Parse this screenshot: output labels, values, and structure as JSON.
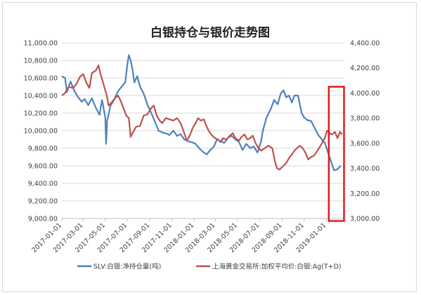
{
  "chart_data": {
    "type": "line",
    "title": "白银持仓与银价走势图",
    "x_ticks": [
      "2017-01-01",
      "2017-03-01",
      "2017-05-01",
      "2017-07-01",
      "2017-09-01",
      "2017-11-01",
      "2018-01-01",
      "2018-03-01",
      "2018-05-01",
      "2018-07-01",
      "2018-09-01",
      "2018-11-01",
      "2019-01-01"
    ],
    "x_range": [
      "2017-01-01",
      "2019-02-20"
    ],
    "left_axis": {
      "ticks": [
        "9,000.00",
        "9,200.00",
        "9,400.00",
        "9,600.00",
        "9,800.00",
        "10,000.00",
        "10,200.00",
        "10,400.00",
        "10,600.00",
        "10,800.00",
        "11,000.00"
      ],
      "range": [
        9000,
        11000
      ]
    },
    "right_axis": {
      "ticks": [
        "3,000.00",
        "3,200.00",
        "3,400.00",
        "3,600.00",
        "3,800.00",
        "4,000.00",
        "4,200.00",
        "4,400.00"
      ],
      "range": [
        3000,
        4400
      ]
    },
    "grid": "horizontal",
    "legend_position": "bottom",
    "series": [
      {
        "name": "SLV:白银:净持仓量(吨)",
        "axis": "left",
        "color": "#4f81bd",
        "points": [
          [
            "2017-01-01",
            10620
          ],
          [
            "2017-01-10",
            10600
          ],
          [
            "2017-01-15",
            10440
          ],
          [
            "2017-01-25",
            10560
          ],
          [
            "2017-02-05",
            10450
          ],
          [
            "2017-02-15",
            10380
          ],
          [
            "2017-02-25",
            10330
          ],
          [
            "2017-03-05",
            10360
          ],
          [
            "2017-03-15",
            10290
          ],
          [
            "2017-03-25",
            10370
          ],
          [
            "2017-04-05",
            10260
          ],
          [
            "2017-04-15",
            10180
          ],
          [
            "2017-04-22",
            10350
          ],
          [
            "2017-05-01",
            10150
          ],
          [
            "2017-05-03",
            9850
          ],
          [
            "2017-05-06",
            10110
          ],
          [
            "2017-05-15",
            10280
          ],
          [
            "2017-05-25",
            10350
          ],
          [
            "2017-06-05",
            10450
          ],
          [
            "2017-06-15",
            10500
          ],
          [
            "2017-06-25",
            10550
          ],
          [
            "2017-07-01",
            10760
          ],
          [
            "2017-07-05",
            10860
          ],
          [
            "2017-07-10",
            10800
          ],
          [
            "2017-07-15",
            10700
          ],
          [
            "2017-07-20",
            10550
          ],
          [
            "2017-07-28",
            10620
          ],
          [
            "2017-08-05",
            10500
          ],
          [
            "2017-08-15",
            10420
          ],
          [
            "2017-08-25",
            10300
          ],
          [
            "2017-09-05",
            10200
          ],
          [
            "2017-09-15",
            10100
          ],
          [
            "2017-09-25",
            10000
          ],
          [
            "2017-10-05",
            9980
          ],
          [
            "2017-10-15",
            9970
          ],
          [
            "2017-10-25",
            9950
          ],
          [
            "2017-11-05",
            10000
          ],
          [
            "2017-11-15",
            9940
          ],
          [
            "2017-11-25",
            9960
          ],
          [
            "2017-12-05",
            9900
          ],
          [
            "2017-12-15",
            9880
          ],
          [
            "2017-12-25",
            9870
          ],
          [
            "2018-01-05",
            9850
          ],
          [
            "2018-01-15",
            9800
          ],
          [
            "2018-01-25",
            9760
          ],
          [
            "2018-02-05",
            9730
          ],
          [
            "2018-02-15",
            9780
          ],
          [
            "2018-02-25",
            9820
          ],
          [
            "2018-03-05",
            9900
          ],
          [
            "2018-03-15",
            9880
          ],
          [
            "2018-03-25",
            9860
          ],
          [
            "2018-04-05",
            9920
          ],
          [
            "2018-04-15",
            9940
          ],
          [
            "2018-04-25",
            9900
          ],
          [
            "2018-05-05",
            9870
          ],
          [
            "2018-05-15",
            9780
          ],
          [
            "2018-05-25",
            9850
          ],
          [
            "2018-06-05",
            9800
          ],
          [
            "2018-06-15",
            9820
          ],
          [
            "2018-06-25",
            9750
          ],
          [
            "2018-07-05",
            9880
          ],
          [
            "2018-07-10",
            10000
          ],
          [
            "2018-07-20",
            10150
          ],
          [
            "2018-08-01",
            10250
          ],
          [
            "2018-08-10",
            10350
          ],
          [
            "2018-08-20",
            10300
          ],
          [
            "2018-08-28",
            10420
          ],
          [
            "2018-09-05",
            10460
          ],
          [
            "2018-09-12",
            10380
          ],
          [
            "2018-09-20",
            10400
          ],
          [
            "2018-09-28",
            10320
          ],
          [
            "2018-10-05",
            10400
          ],
          [
            "2018-10-15",
            10400
          ],
          [
            "2018-10-25",
            10200
          ],
          [
            "2018-11-01",
            10150
          ],
          [
            "2018-11-10",
            10120
          ],
          [
            "2018-11-20",
            10110
          ],
          [
            "2018-12-01",
            10020
          ],
          [
            "2018-12-10",
            9950
          ],
          [
            "2018-12-20",
            9900
          ],
          [
            "2018-12-28",
            9860
          ],
          [
            "2019-01-05",
            9760
          ],
          [
            "2019-01-15",
            9640
          ],
          [
            "2019-01-22",
            9550
          ],
          [
            "2019-02-01",
            9560
          ],
          [
            "2019-02-10",
            9600
          ]
        ]
      },
      {
        "name": "上海黄金交易所:加权平均价:白银:Ag(T+D)",
        "axis": "right",
        "color": "#c0504d",
        "points": [
          [
            "2017-01-01",
            3980
          ],
          [
            "2017-01-10",
            4000
          ],
          [
            "2017-01-20",
            4050
          ],
          [
            "2017-02-01",
            4040
          ],
          [
            "2017-02-10",
            4070
          ],
          [
            "2017-02-20",
            4130
          ],
          [
            "2017-03-01",
            4150
          ],
          [
            "2017-03-10",
            4080
          ],
          [
            "2017-03-18",
            4040
          ],
          [
            "2017-03-25",
            4160
          ],
          [
            "2017-04-05",
            4180
          ],
          [
            "2017-04-12",
            4220
          ],
          [
            "2017-04-18",
            4150
          ],
          [
            "2017-04-25",
            4080
          ],
          [
            "2017-05-05",
            3980
          ],
          [
            "2017-05-10",
            3900
          ],
          [
            "2017-05-20",
            3930
          ],
          [
            "2017-05-28",
            3960
          ],
          [
            "2017-06-05",
            3980
          ],
          [
            "2017-06-12",
            3940
          ],
          [
            "2017-06-20",
            3880
          ],
          [
            "2017-06-28",
            3820
          ],
          [
            "2017-07-05",
            3800
          ],
          [
            "2017-07-10",
            3650
          ],
          [
            "2017-07-15",
            3680
          ],
          [
            "2017-07-25",
            3730
          ],
          [
            "2017-08-05",
            3740
          ],
          [
            "2017-08-15",
            3820
          ],
          [
            "2017-08-25",
            3830
          ],
          [
            "2017-09-05",
            3880
          ],
          [
            "2017-09-12",
            3900
          ],
          [
            "2017-09-20",
            3820
          ],
          [
            "2017-09-28",
            3780
          ],
          [
            "2017-10-05",
            3760
          ],
          [
            "2017-10-15",
            3800
          ],
          [
            "2017-10-25",
            3790
          ],
          [
            "2017-11-05",
            3780
          ],
          [
            "2017-11-15",
            3800
          ],
          [
            "2017-11-25",
            3760
          ],
          [
            "2017-12-05",
            3680
          ],
          [
            "2017-12-12",
            3620
          ],
          [
            "2017-12-20",
            3660
          ],
          [
            "2017-12-28",
            3720
          ],
          [
            "2018-01-05",
            3760
          ],
          [
            "2018-01-12",
            3800
          ],
          [
            "2018-01-20",
            3780
          ],
          [
            "2018-01-28",
            3790
          ],
          [
            "2018-02-05",
            3730
          ],
          [
            "2018-02-12",
            3690
          ],
          [
            "2018-02-20",
            3660
          ],
          [
            "2018-02-28",
            3640
          ],
          [
            "2018-03-08",
            3630
          ],
          [
            "2018-03-15",
            3610
          ],
          [
            "2018-03-22",
            3640
          ],
          [
            "2018-04-01",
            3630
          ],
          [
            "2018-04-10",
            3660
          ],
          [
            "2018-04-18",
            3680
          ],
          [
            "2018-04-25",
            3640
          ],
          [
            "2018-05-05",
            3620
          ],
          [
            "2018-05-12",
            3650
          ],
          [
            "2018-05-20",
            3670
          ],
          [
            "2018-05-28",
            3630
          ],
          [
            "2018-06-05",
            3640
          ],
          [
            "2018-06-12",
            3660
          ],
          [
            "2018-06-20",
            3600
          ],
          [
            "2018-06-28",
            3560
          ],
          [
            "2018-07-05",
            3540
          ],
          [
            "2018-07-15",
            3560
          ],
          [
            "2018-07-25",
            3580
          ],
          [
            "2018-08-05",
            3560
          ],
          [
            "2018-08-12",
            3460
          ],
          [
            "2018-08-18",
            3400
          ],
          [
            "2018-08-25",
            3390
          ],
          [
            "2018-09-05",
            3420
          ],
          [
            "2018-09-12",
            3440
          ],
          [
            "2018-09-20",
            3480
          ],
          [
            "2018-09-28",
            3510
          ],
          [
            "2018-10-05",
            3540
          ],
          [
            "2018-10-12",
            3560
          ],
          [
            "2018-10-20",
            3580
          ],
          [
            "2018-10-28",
            3560
          ],
          [
            "2018-11-05",
            3520
          ],
          [
            "2018-11-12",
            3470
          ],
          [
            "2018-11-20",
            3490
          ],
          [
            "2018-11-28",
            3500
          ],
          [
            "2018-12-05",
            3530
          ],
          [
            "2018-12-12",
            3560
          ],
          [
            "2018-12-20",
            3600
          ],
          [
            "2018-12-28",
            3640
          ],
          [
            "2019-01-03",
            3700
          ],
          [
            "2019-01-10",
            3680
          ],
          [
            "2019-01-17",
            3670
          ],
          [
            "2019-01-25",
            3690
          ],
          [
            "2019-02-01",
            3640
          ],
          [
            "2019-02-08",
            3690
          ],
          [
            "2019-02-14",
            3670
          ]
        ]
      }
    ],
    "highlight": {
      "from": "2019-01-08",
      "to": "2019-02-19",
      "axis_range": [
        2980,
        4050
      ],
      "color": "#e31a1c"
    }
  }
}
